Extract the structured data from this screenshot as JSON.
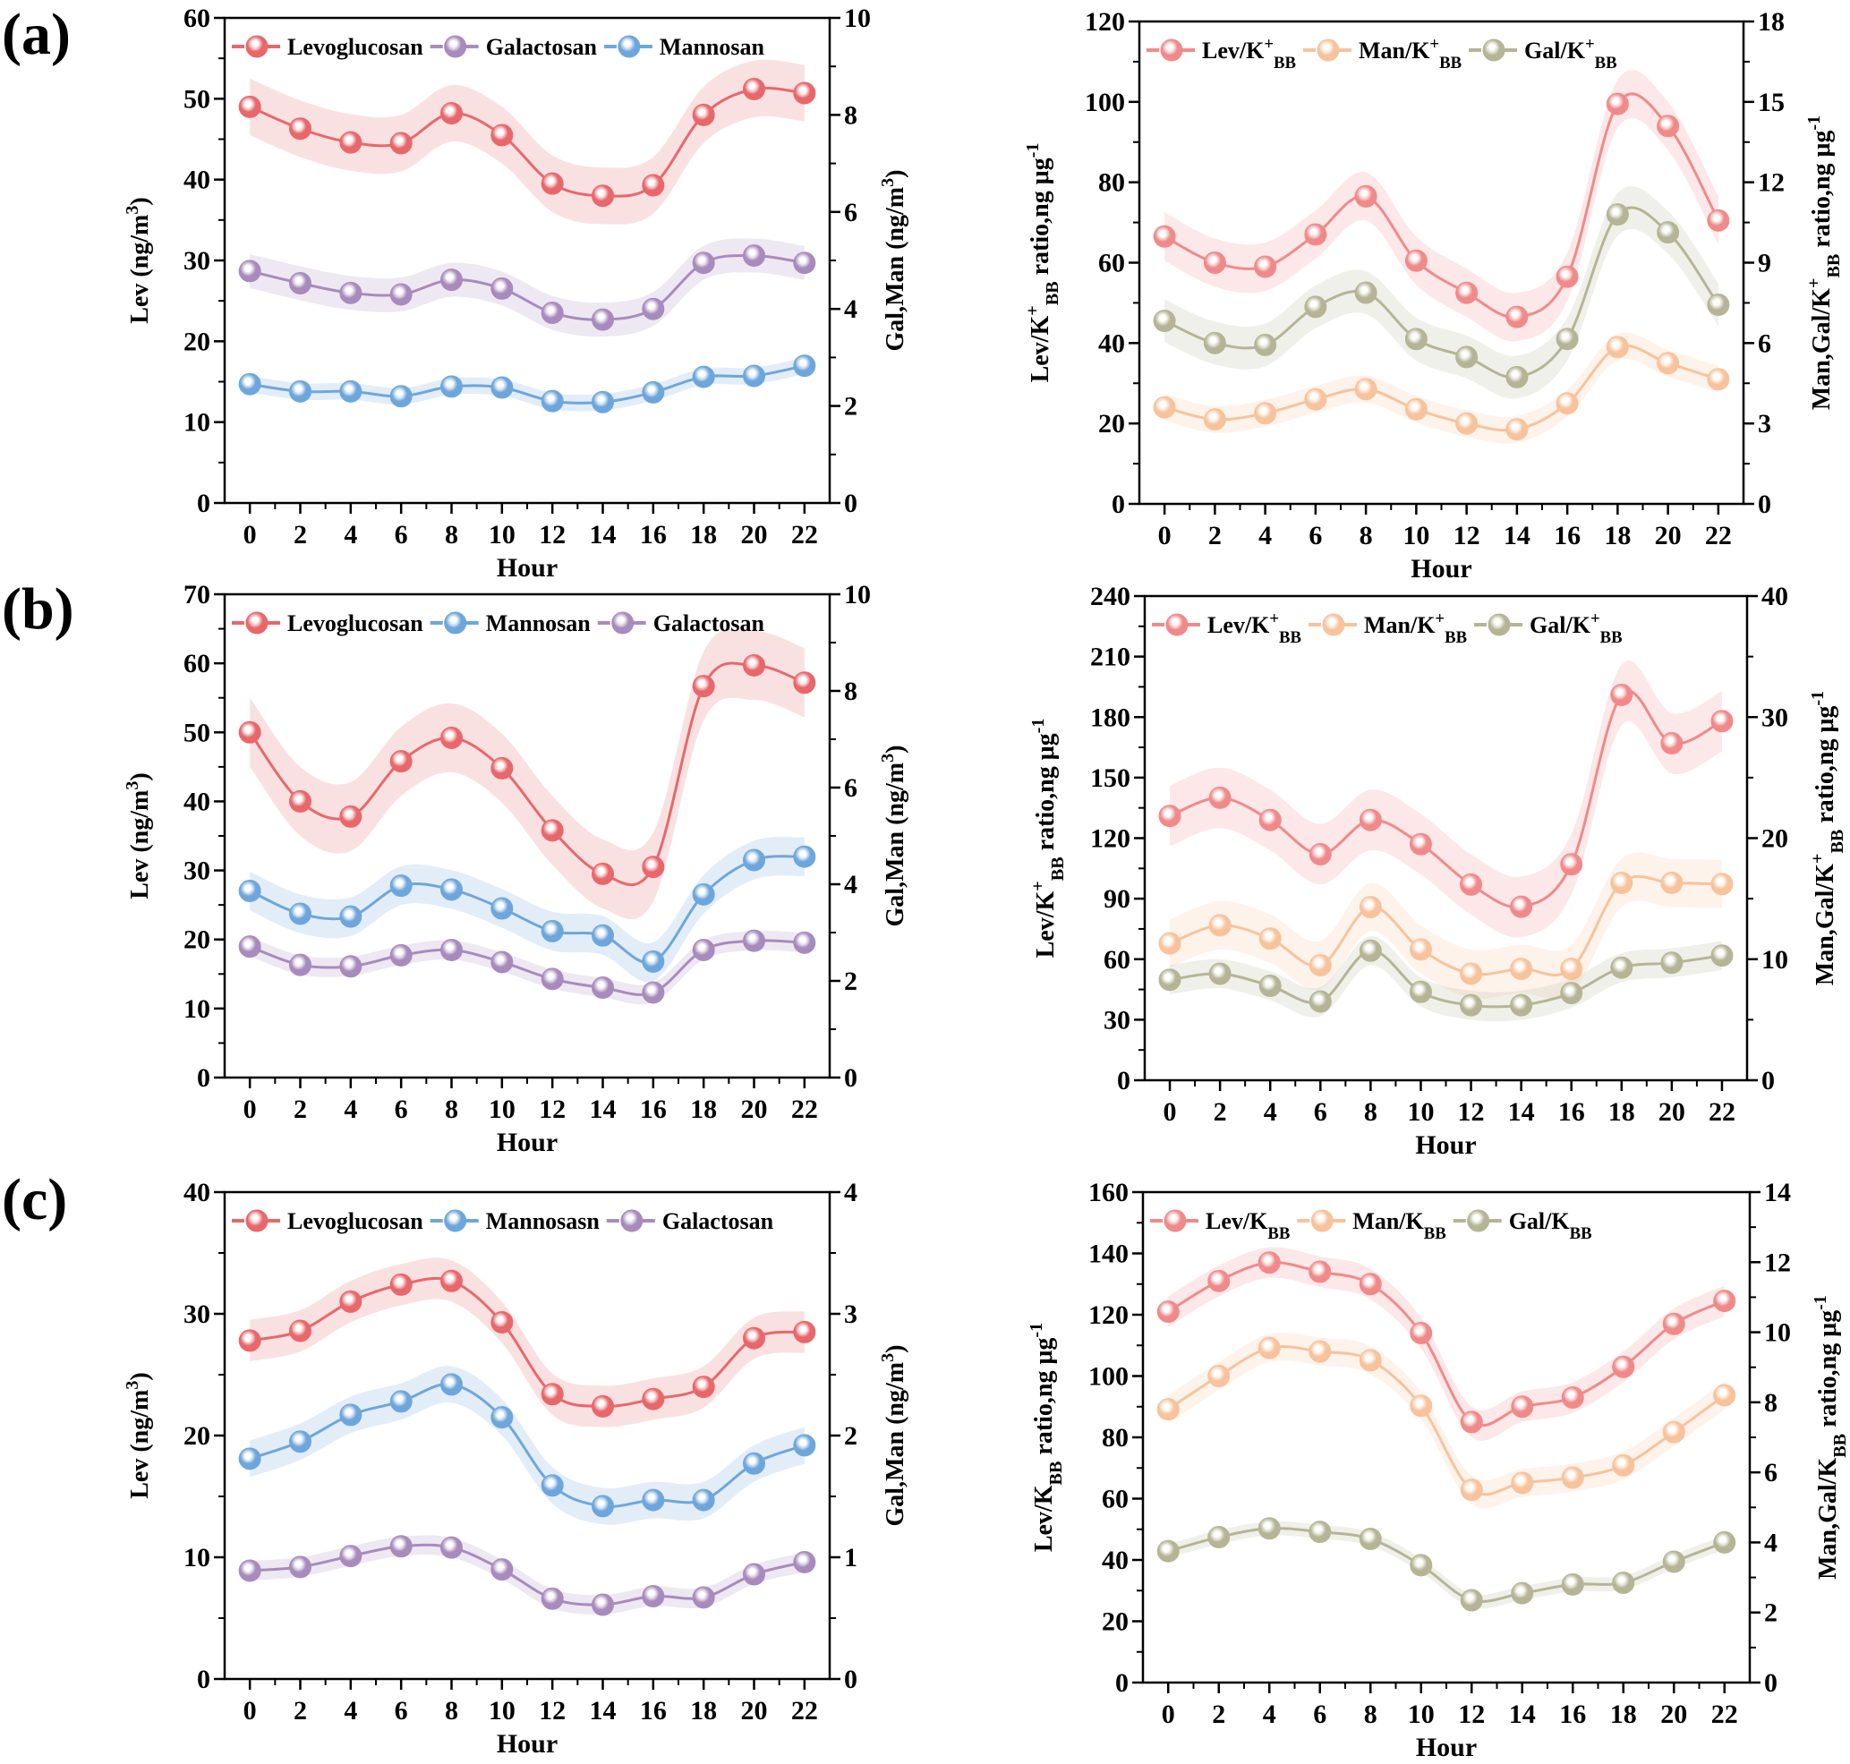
{
  "chart_data": [
    {
      "panel": "(a)",
      "type": "line",
      "x": [
        0,
        2,
        4,
        6,
        8,
        10,
        12,
        14,
        16,
        18,
        20,
        22
      ],
      "xlabel": "Hour",
      "xlim": [
        -1,
        23
      ],
      "y_left": {
        "label": [
          {
            "t": "Lev (ng/m"
          },
          {
            "t": "3",
            "sup": true
          },
          {
            "t": ")"
          }
        ],
        "lim": [
          0,
          60
        ],
        "step": 10
      },
      "y_right": {
        "label": [
          {
            "t": "Gal,Man (ng/m"
          },
          {
            "t": "3",
            "sup": true
          },
          {
            "t": ")"
          }
        ],
        "lim": [
          0,
          10
        ],
        "step": 2
      },
      "legend": "top",
      "series": [
        {
          "name": [
            {
              "t": "Levoglucosan"
            }
          ],
          "axis": "left",
          "color": "#e8676b",
          "band": 3.5,
          "values": [
            49,
            46.3,
            44.6,
            44.5,
            48.2,
            45.5,
            39.5,
            38,
            39.3,
            48,
            51.2,
            50.7
          ]
        },
        {
          "name": [
            {
              "t": "Galactosan"
            }
          ],
          "axis": "right",
          "color": "#a88bbd",
          "band": 0.35,
          "values": [
            4.78,
            4.53,
            4.33,
            4.3,
            4.6,
            4.42,
            3.92,
            3.78,
            4.0,
            4.95,
            5.1,
            4.95
          ]
        },
        {
          "name": [
            {
              "t": "Mannosan"
            }
          ],
          "axis": "right",
          "color": "#6ea6dc",
          "band": 0.17,
          "values": [
            2.45,
            2.3,
            2.3,
            2.2,
            2.4,
            2.38,
            2.1,
            2.08,
            2.28,
            2.6,
            2.62,
            2.83
          ]
        }
      ]
    },
    {
      "panel": "",
      "type": "line",
      "x": [
        0,
        2,
        4,
        6,
        8,
        10,
        12,
        14,
        16,
        18,
        20,
        22
      ],
      "xlabel": "Hour",
      "xlim": [
        -1,
        23
      ],
      "y_left": {
        "label": [
          {
            "t": "Lev/K"
          },
          {
            "t": "+",
            "sup": true
          },
          {
            "t": "BB",
            "sub": true
          },
          {
            "t": " ratio,ng μg"
          },
          {
            "t": "-1",
            "sup": true
          }
        ],
        "lim": [
          0,
          120
        ],
        "step": 20
      },
      "y_right": {
        "label": [
          {
            "t": "Man,Gal/K"
          },
          {
            "t": "+",
            "sup": true
          },
          {
            "t": "BB",
            "sub": true
          },
          {
            "t": " ratio,ng μg"
          },
          {
            "t": "-1",
            "sup": true
          }
        ],
        "lim": [
          0,
          18
        ],
        "step": 3
      },
      "legend": "top",
      "series": [
        {
          "name": [
            {
              "t": "Lev/K"
            },
            {
              "t": "+",
              "sup": true
            },
            {
              "t": "BB",
              "sub": true
            }
          ],
          "axis": "left",
          "color": "#f08a8a",
          "band": 6,
          "values": [
            66.5,
            60,
            59,
            67,
            76.5,
            60.5,
            52.5,
            46.5,
            56.5,
            99.5,
            94,
            70.5
          ]
        },
        {
          "name": [
            {
              "t": "Man/K"
            },
            {
              "t": "+",
              "sup": true
            },
            {
              "t": "BB",
              "sub": true
            }
          ],
          "axis": "right",
          "color": "#f7c39c",
          "band": 0.5,
          "values": [
            3.6,
            3.15,
            3.38,
            3.9,
            4.28,
            3.53,
            3.0,
            2.78,
            3.75,
            5.85,
            5.25,
            4.65
          ]
        },
        {
          "name": [
            {
              "t": "Gal/K"
            },
            {
              "t": "+",
              "sup": true
            },
            {
              "t": "BB",
              "sub": true
            }
          ],
          "axis": "right",
          "color": "#b5b596",
          "band": 0.8,
          "values": [
            6.83,
            6.0,
            5.93,
            7.35,
            7.88,
            6.15,
            5.48,
            4.73,
            6.15,
            10.8,
            10.13,
            7.43
          ]
        }
      ]
    },
    {
      "panel": "(b)",
      "type": "line",
      "x": [
        0,
        2,
        4,
        6,
        8,
        10,
        12,
        14,
        16,
        18,
        20,
        22
      ],
      "xlabel": "Hour",
      "xlim": [
        -1,
        23
      ],
      "y_left": {
        "label": [
          {
            "t": "Lev (ng/m"
          },
          {
            "t": "3",
            "sup": true
          },
          {
            "t": ")"
          }
        ],
        "lim": [
          0,
          70
        ],
        "step": 10
      },
      "y_right": {
        "label": [
          {
            "t": "Gal,Man (ng/m"
          },
          {
            "t": "3",
            "sup": true
          },
          {
            "t": ")"
          }
        ],
        "lim": [
          0,
          10
        ],
        "step": 2
      },
      "legend": "top",
      "series": [
        {
          "name": [
            {
              "t": "Levoglucosan"
            }
          ],
          "axis": "left",
          "color": "#e8676b",
          "band": 5,
          "values": [
            50,
            40,
            37.8,
            45.8,
            49.2,
            44.8,
            35.8,
            29.5,
            30.5,
            56.7,
            59.7,
            57.2
          ]
        },
        {
          "name": [
            {
              "t": "Mannosan"
            }
          ],
          "axis": "right",
          "color": "#6ea6dc",
          "band": 0.4,
          "values": [
            3.86,
            3.39,
            3.33,
            3.97,
            3.89,
            3.5,
            3.03,
            2.94,
            2.4,
            3.79,
            4.5,
            4.57
          ]
        },
        {
          "name": [
            {
              "t": "Galactosan"
            }
          ],
          "axis": "right",
          "color": "#a88bbd",
          "band": 0.2,
          "values": [
            2.71,
            2.33,
            2.3,
            2.53,
            2.64,
            2.39,
            2.04,
            1.86,
            1.76,
            2.64,
            2.83,
            2.79
          ]
        }
      ]
    },
    {
      "panel": "",
      "type": "line",
      "x": [
        0,
        2,
        4,
        6,
        8,
        10,
        12,
        14,
        16,
        18,
        20,
        22
      ],
      "xlabel": "Hour",
      "xlim": [
        -1,
        23
      ],
      "y_left": {
        "label": [
          {
            "t": "Lev/K"
          },
          {
            "t": "+",
            "sup": true
          },
          {
            "t": "BB",
            "sub": true
          },
          {
            "t": " ratio,ng μg"
          },
          {
            "t": "-1",
            "sup": true
          }
        ],
        "lim": [
          0,
          240
        ],
        "step": 30
      },
      "y_right": {
        "label": [
          {
            "t": "Man,Gal/K"
          },
          {
            "t": "+",
            "sup": true
          },
          {
            "t": "BB",
            "sub": true
          },
          {
            "t": " ratio,ng μg"
          },
          {
            "t": "-1",
            "sup": true
          }
        ],
        "lim": [
          0,
          40
        ],
        "step": 10
      },
      "legend": "top",
      "series": [
        {
          "name": [
            {
              "t": "Lev/K"
            },
            {
              "t": "+",
              "sup": true
            },
            {
              "t": "BB",
              "sub": true
            }
          ],
          "axis": "left",
          "color": "#f08a8a",
          "band": 15,
          "values": [
            131,
            140,
            129,
            112,
            129,
            117,
            97,
            86,
            107,
            191,
            167,
            178
          ]
        },
        {
          "name": [
            {
              "t": "Man/K"
            },
            {
              "t": "+",
              "sup": true
            },
            {
              "t": "BB",
              "sub": true
            }
          ],
          "axis": "right",
          "color": "#f7c39c",
          "band": 2,
          "values": [
            11.3,
            12.8,
            11.7,
            9.5,
            14.3,
            10.8,
            8.8,
            9.2,
            9.2,
            16.3,
            16.3,
            16.2
          ]
        },
        {
          "name": [
            {
              "t": "Gal/K"
            },
            {
              "t": "+",
              "sup": true
            },
            {
              "t": "BB",
              "sub": true
            }
          ],
          "axis": "right",
          "color": "#b5b596",
          "band": 1.2,
          "values": [
            8.3,
            8.8,
            7.8,
            6.5,
            10.7,
            7.3,
            6.2,
            6.2,
            7.2,
            9.3,
            9.7,
            10.3
          ]
        }
      ]
    },
    {
      "panel": "(c)",
      "type": "line",
      "x": [
        0,
        2,
        4,
        6,
        8,
        10,
        12,
        14,
        16,
        18,
        20,
        22
      ],
      "xlabel": "Hour",
      "xlim": [
        -1,
        23
      ],
      "y_left": {
        "label": [
          {
            "t": "Lev (ng/m"
          },
          {
            "t": "3",
            "sup": true
          },
          {
            "t": ")"
          }
        ],
        "lim": [
          0,
          40
        ],
        "step": 10
      },
      "y_right": {
        "label": [
          {
            "t": "Gal,Man (ng/m"
          },
          {
            "t": "3",
            "sup": true
          },
          {
            "t": ")"
          }
        ],
        "lim": [
          0,
          4
        ],
        "step": 1
      },
      "legend": "top",
      "series": [
        {
          "name": [
            {
              "t": "Levoglucosan"
            }
          ],
          "axis": "left",
          "color": "#e8676b",
          "band": 1.7,
          "values": [
            27.8,
            28.6,
            31,
            32.4,
            32.7,
            29.3,
            23.4,
            22.4,
            23,
            24,
            28,
            28.5
          ]
        },
        {
          "name": [
            {
              "t": "Mannosasn"
            }
          ],
          "axis": "right",
          "color": "#6ea6dc",
          "band": 0.15,
          "values": [
            1.81,
            1.95,
            2.17,
            2.28,
            2.42,
            2.15,
            1.59,
            1.42,
            1.47,
            1.47,
            1.77,
            1.92
          ]
        },
        {
          "name": [
            {
              "t": "Galactosan"
            }
          ],
          "axis": "right",
          "color": "#a88bbd",
          "band": 0.08,
          "values": [
            0.89,
            0.92,
            1.01,
            1.09,
            1.08,
            0.9,
            0.66,
            0.61,
            0.68,
            0.67,
            0.86,
            0.96
          ]
        }
      ]
    },
    {
      "panel": "",
      "type": "line",
      "x": [
        0,
        2,
        4,
        6,
        8,
        10,
        12,
        14,
        16,
        18,
        20,
        22
      ],
      "xlabel": "Hour",
      "xlim": [
        -1,
        23
      ],
      "y_left": {
        "label": [
          {
            "t": "Lev/K"
          },
          {
            "t": "BB",
            "sub": true
          },
          {
            "t": " ratio,ng μg"
          },
          {
            "t": "-1",
            "sup": true
          }
        ],
        "lim": [
          0,
          160
        ],
        "step": 20
      },
      "y_right": {
        "label": [
          {
            "t": "Man,Gal/K"
          },
          {
            "t": "BB",
            "sub": true
          },
          {
            "t": " ratio,ng μg"
          },
          {
            "t": "-1",
            "sup": true
          }
        ],
        "lim": [
          0,
          14
        ],
        "step": 2
      },
      "legend": "top",
      "series": [
        {
          "name": [
            {
              "t": "Lev/K"
            },
            {
              "t": "BB",
              "sub": true
            }
          ],
          "axis": "left",
          "color": "#f08a8a",
          "band": 5,
          "values": [
            121,
            131,
            137,
            134,
            130,
            114,
            85,
            90,
            93,
            103,
            117,
            124.5
          ]
        },
        {
          "name": [
            {
              "t": "Man/K"
            },
            {
              "t": "BB",
              "sub": true
            }
          ],
          "axis": "right",
          "color": "#f7c39c",
          "band": 0.4,
          "values": [
            7.8,
            8.75,
            9.55,
            9.45,
            9.2,
            7.9,
            5.5,
            5.7,
            5.85,
            6.2,
            7.15,
            8.2
          ]
        },
        {
          "name": [
            {
              "t": "Gal/K"
            },
            {
              "t": "BB",
              "sub": true
            }
          ],
          "axis": "right",
          "color": "#b5b596",
          "band": 0.2,
          "values": [
            3.75,
            4.15,
            4.4,
            4.3,
            4.1,
            3.35,
            2.35,
            2.55,
            2.8,
            2.85,
            3.45,
            4.0
          ]
        }
      ]
    }
  ]
}
